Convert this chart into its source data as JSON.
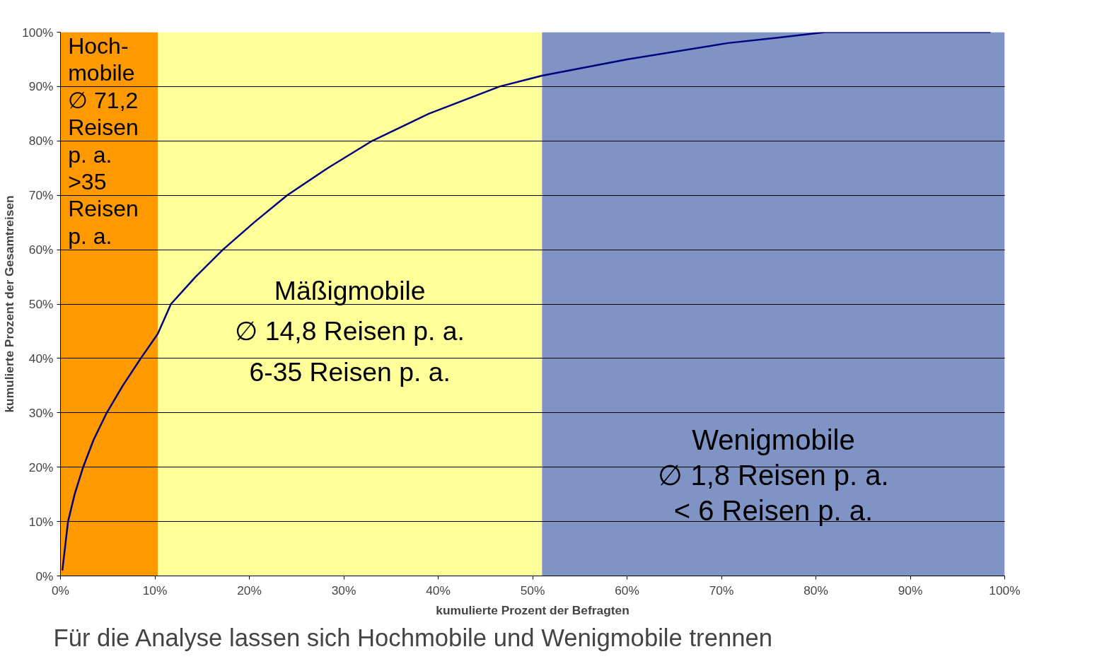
{
  "chart_data": {
    "type": "line",
    "xlabel": "kumulierte Prozent der Befragten",
    "ylabel": "kumulierte Prozent der Gesamtreisen",
    "x": [
      0.2,
      0.8,
      1.5,
      2.4,
      3.5,
      4.9,
      6.6,
      8.5,
      10.3,
      11.7,
      14.3,
      17.2,
      20.5,
      24,
      28.3,
      33,
      39,
      46.5,
      51,
      60,
      70.7,
      76,
      81,
      90,
      98.5
    ],
    "series": [
      {
        "color": "#000080",
        "values": [
          1,
          10,
          15,
          20,
          25,
          30,
          35,
          40,
          44.5,
          50,
          55,
          60,
          65,
          70,
          75,
          80,
          85,
          90,
          92,
          95,
          98,
          99,
          100,
          100,
          100
        ]
      }
    ],
    "xlim": [
      0,
      100
    ],
    "ylim": [
      0,
      100
    ],
    "xticks": [
      {
        "value": 0,
        "label": "0%"
      },
      {
        "value": 10,
        "label": "10%"
      },
      {
        "value": 20,
        "label": "20%"
      },
      {
        "value": 30,
        "label": "30%"
      },
      {
        "value": 40,
        "label": "40%"
      },
      {
        "value": 50,
        "label": "50%"
      },
      {
        "value": 60,
        "label": "60%"
      },
      {
        "value": 70,
        "label": "70%"
      },
      {
        "value": 80,
        "label": "80%"
      },
      {
        "value": 90,
        "label": "90%"
      },
      {
        "value": 100,
        "label": "100%"
      }
    ],
    "yticks": [
      {
        "value": 0,
        "label": "0%"
      },
      {
        "value": 10,
        "label": "10%"
      },
      {
        "value": 20,
        "label": "20%"
      },
      {
        "value": 30,
        "label": "30%"
      },
      {
        "value": 40,
        "label": "40%"
      },
      {
        "value": 50,
        "label": "50%"
      },
      {
        "value": 60,
        "label": "60%"
      },
      {
        "value": 70,
        "label": "70%"
      },
      {
        "value": 80,
        "label": "80%"
      },
      {
        "value": 90,
        "label": "90%"
      },
      {
        "value": 100,
        "label": "100%"
      }
    ],
    "bands": [
      {
        "axis": "x",
        "from": 0,
        "to": 10.3,
        "color": "#ff9900",
        "label": "Hoch-\nmobile\n∅ 71,2\nReisen\np. a.\n>35\nReisen\np. a."
      },
      {
        "axis": "x",
        "from": 10.3,
        "to": 51,
        "color": "#ffff99",
        "label": "Mäßigmobile\n∅ 14,8 Reisen p. a.\n6-35 Reisen p. a."
      },
      {
        "axis": "x",
        "from": 51,
        "to": 100,
        "color": "#7f93c4",
        "label": "Wenigmobile\n∅ 1,8 Reisen p. a.\n< 6 Reisen p. a."
      }
    ],
    "grid": "y",
    "annotations": [
      "Für die Analyse lassen sich Hochmobile und Wenigmobile trennen"
    ]
  }
}
